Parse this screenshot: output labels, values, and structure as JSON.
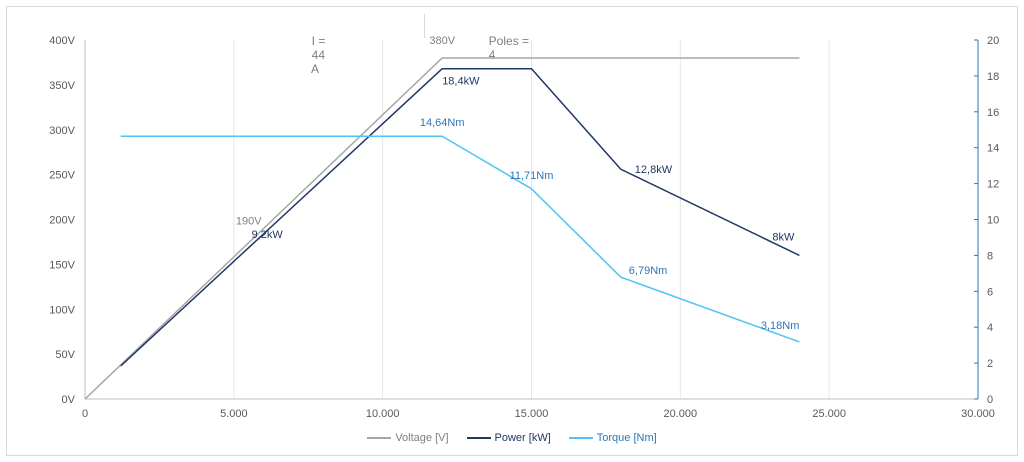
{
  "info": {
    "current_label": "I =",
    "current_value": "44",
    "current_unit": "A",
    "poles_label": "Poles =",
    "poles_value": "4"
  },
  "colors": {
    "voltage": "#a6a6a6",
    "power": "#1f3864",
    "torque": "#4fc3f7",
    "axis_right": "#2e75b6",
    "grid": "#e6e6e6",
    "axis_text": "#595959"
  },
  "chart_data": {
    "type": "line",
    "title": "",
    "xlabel": "",
    "ylabel": "",
    "xlim": [
      0,
      30000
    ],
    "ylim": [
      0,
      400
    ],
    "y2lim": [
      0,
      20
    ],
    "x_ticks": [
      "0",
      "5.000",
      "10.000",
      "15.000",
      "20.000",
      "25.000",
      "30.000"
    ],
    "y_ticks": [
      "0V",
      "50V",
      "100V",
      "150V",
      "200V",
      "250V",
      "300V",
      "350V",
      "400V"
    ],
    "y2_ticks": [
      "0",
      "2",
      "4",
      "6",
      "8",
      "10",
      "12",
      "14",
      "16",
      "18",
      "20"
    ],
    "grid": "vertical",
    "legend": "bottom",
    "series": [
      {
        "name": "Voltage [V]",
        "axis": "left",
        "x": [
          0,
          12000,
          24000
        ],
        "y": [
          0,
          380,
          380
        ],
        "labels": [
          {
            "x": 6000,
            "y": 190,
            "text": "190V"
          },
          {
            "x": 12000,
            "y": 380,
            "text": "380V"
          }
        ]
      },
      {
        "name": "Power [kW]",
        "axis": "right",
        "x": [
          1200,
          12000,
          15000,
          18000,
          24000
        ],
        "y": [
          1.84,
          18.4,
          18.4,
          12.8,
          8
        ],
        "labels": [
          {
            "x": 6000,
            "y": 9.2,
            "text": "9,2kW"
          },
          {
            "x": 12000,
            "y": 18.4,
            "text": "18,4kW"
          },
          {
            "x": 18000,
            "y": 12.8,
            "text": "12,8kW"
          },
          {
            "x": 24000,
            "y": 8,
            "text": "8kW"
          }
        ]
      },
      {
        "name": "Torque [Nm]",
        "axis": "right",
        "x": [
          1200,
          12000,
          15000,
          18000,
          24000
        ],
        "y": [
          14.64,
          14.64,
          11.71,
          6.79,
          3.18
        ],
        "labels": [
          {
            "x": 12000,
            "y": 14.64,
            "text": "14,64Nm"
          },
          {
            "x": 15000,
            "y": 11.71,
            "text": "11,71Nm"
          },
          {
            "x": 18000,
            "y": 6.79,
            "text": "6,79Nm"
          },
          {
            "x": 24000,
            "y": 3.18,
            "text": "3,18Nm"
          }
        ]
      }
    ]
  }
}
